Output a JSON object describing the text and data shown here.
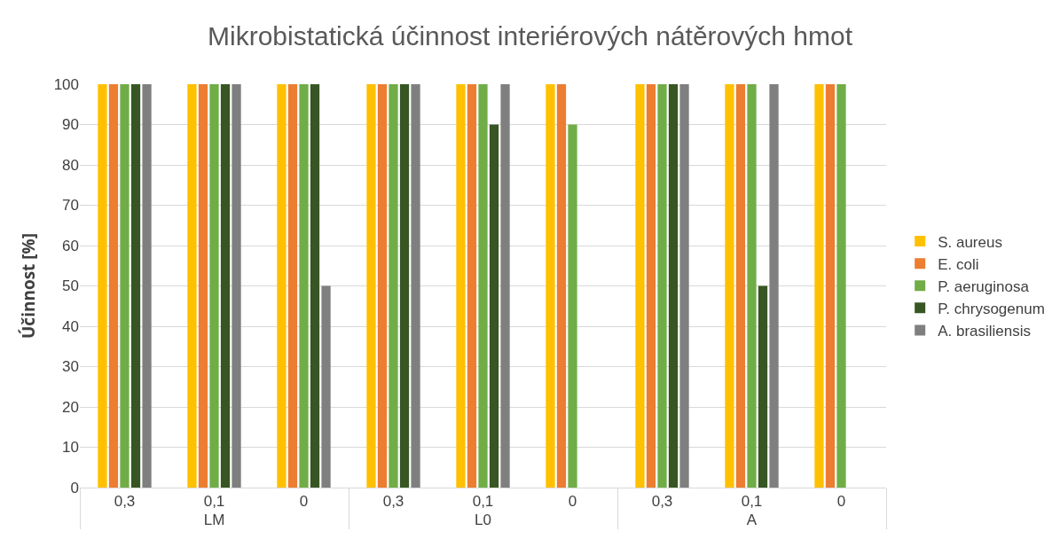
{
  "chart_data": {
    "type": "bar",
    "title": "Mikrobistatická účinnost interiérových nátěrových hmot",
    "ylabel": "Účinnost [%]",
    "categories": [
      "0,3",
      "0,1",
      "0",
      "0,3",
      "0,1",
      "0",
      "0,3",
      "0,1",
      "0"
    ],
    "annotations": [
      "LM",
      "L0",
      "A"
    ],
    "series": [
      {
        "name": "S. aureus",
        "color": "#ffc000",
        "values": [
          100,
          100,
          100,
          100,
          100,
          100,
          100,
          100,
          100
        ]
      },
      {
        "name": "E. coli",
        "color": "#ed7d31",
        "values": [
          100,
          100,
          100,
          100,
          100,
          100,
          100,
          100,
          100
        ]
      },
      {
        "name": "P. aeruginosa",
        "color": "#70ad47",
        "values": [
          100,
          100,
          100,
          100,
          100,
          90,
          100,
          100,
          100
        ]
      },
      {
        "name": "P. chrysogenum",
        "color": "#375623",
        "values": [
          100,
          100,
          100,
          100,
          90,
          0,
          100,
          50,
          0
        ]
      },
      {
        "name": "A. brasiliensis",
        "color": "#7f7f7f",
        "values": [
          100,
          100,
          50,
          100,
          100,
          0,
          100,
          100,
          0
        ]
      }
    ],
    "ylim": [
      0,
      100
    ],
    "yticks": [
      0,
      10,
      20,
      30,
      40,
      50,
      60,
      70,
      80,
      90,
      100
    ],
    "grid": "y",
    "legend": "right"
  }
}
